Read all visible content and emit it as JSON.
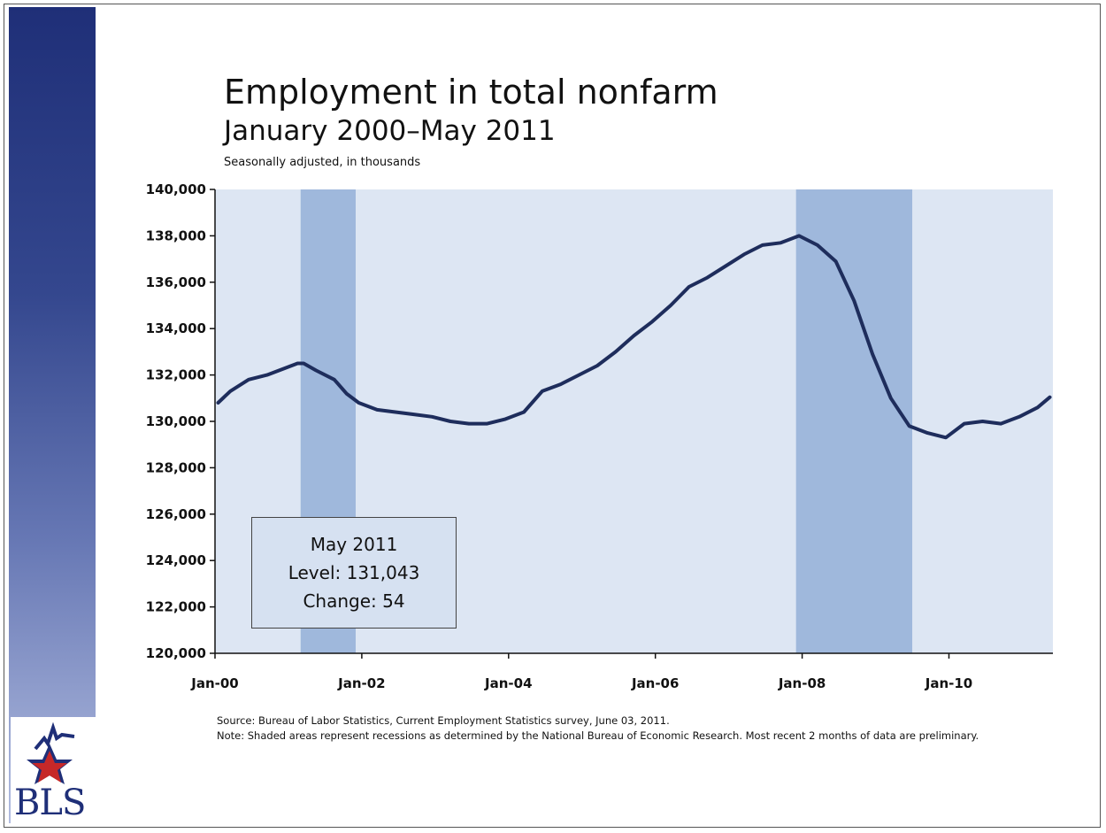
{
  "title": "Employment in total nonfarm",
  "subtitle": "January 2000–May 2011",
  "note": "Seasonally adjusted, in thousands",
  "logo_text": "BLS",
  "callout": {
    "line1": "May 2011",
    "line2": "Level: 131,043",
    "line3": "Change: 54"
  },
  "footnotes": {
    "source": "Source: Bureau of Labor Statistics, Current Employment Statistics survey, June 03, 2011.",
    "note": "Note: Shaded areas represent recessions as determined by the National Bureau of Economic Research. Most recent 2 months of data are preliminary."
  },
  "colors": {
    "line": "#1e2d5c",
    "plot_bg": "#dde6f3",
    "recession": "#9fb8dc",
    "sidebar": "#1f2f78"
  },
  "chart_data": {
    "type": "line",
    "title": "Employment in total nonfarm",
    "subtitle": "January 2000–May 2011",
    "ylabel": "Seasonally adjusted, in thousands",
    "xlabel": "",
    "ylim": [
      120000,
      140000
    ],
    "xlim": [
      "2000-01",
      "2011-05"
    ],
    "y_ticks": [
      120000,
      122000,
      124000,
      126000,
      128000,
      130000,
      132000,
      134000,
      136000,
      138000,
      140000
    ],
    "y_tick_labels": [
      "120,000",
      "122,000",
      "124,000",
      "126,000",
      "128,000",
      "130,000",
      "132,000",
      "134,000",
      "136,000",
      "138,000",
      "140,000"
    ],
    "x_ticks": [
      "2000-01",
      "2002-01",
      "2004-01",
      "2006-01",
      "2008-01",
      "2010-01"
    ],
    "x_tick_labels": [
      "Jan-00",
      "Jan-02",
      "Jan-04",
      "Jan-06",
      "Jan-08",
      "Jan-10"
    ],
    "grid": false,
    "recessions": [
      {
        "start": "2001-03",
        "end": "2001-11"
      },
      {
        "start": "2007-12",
        "end": "2009-06"
      }
    ],
    "series": [
      {
        "x": [
          "2000-01",
          "2000-03",
          "2000-06",
          "2000-09",
          "2000-12",
          "2001-02",
          "2001-03",
          "2001-05",
          "2001-08",
          "2001-10",
          "2001-12",
          "2002-03",
          "2002-06",
          "2002-09",
          "2002-12",
          "2003-03",
          "2003-06",
          "2003-09",
          "2003-12",
          "2004-03",
          "2004-06",
          "2004-09",
          "2004-12",
          "2005-03",
          "2005-06",
          "2005-09",
          "2005-12",
          "2006-03",
          "2006-06",
          "2006-09",
          "2006-12",
          "2007-03",
          "2007-06",
          "2007-09",
          "2007-12",
          "2008-03",
          "2008-06",
          "2008-09",
          "2008-12",
          "2009-03",
          "2009-06",
          "2009-09",
          "2009-12",
          "2010-03",
          "2010-06",
          "2010-09",
          "2010-12",
          "2011-03",
          "2011-05"
        ],
        "values": [
          130800,
          131300,
          131800,
          132000,
          132300,
          132500,
          132500,
          132200,
          131800,
          131200,
          130800,
          130500,
          130400,
          130300,
          130200,
          130000,
          129900,
          129900,
          130100,
          130400,
          131300,
          131600,
          132000,
          132400,
          133000,
          133700,
          134300,
          135000,
          135800,
          136200,
          136700,
          137200,
          137600,
          137700,
          138000,
          137600,
          136900,
          135200,
          132900,
          131000,
          129800,
          129500,
          129300,
          129900,
          130000,
          129900,
          130200,
          130600,
          131043
        ]
      }
    ]
  }
}
